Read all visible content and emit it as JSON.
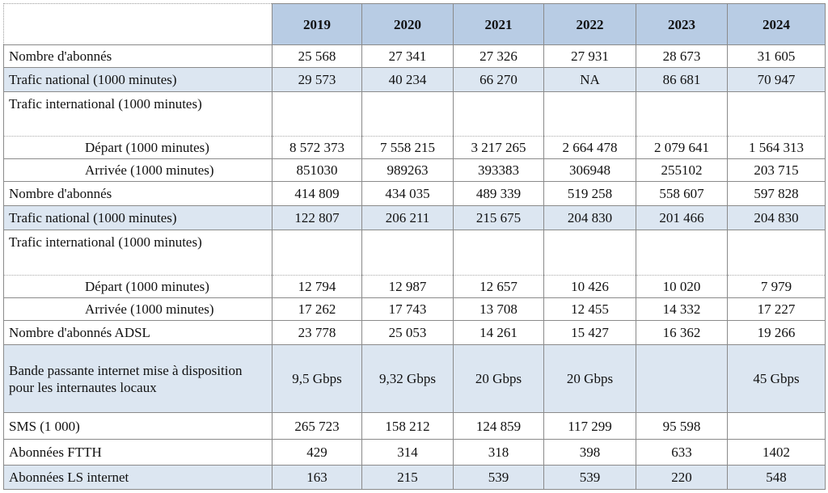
{
  "table": {
    "columns": [
      "2019",
      "2020",
      "2021",
      "2022",
      "2023",
      "2024"
    ],
    "rows": [
      {
        "label": "Nombre d'abonnés",
        "cells": [
          "25 568",
          "27 341",
          "27 326",
          "27 931",
          "28 673",
          "31 605"
        ]
      },
      {
        "label": "Trafic national (1000 minutes)",
        "cells": [
          "29 573",
          "40 234",
          "66 270",
          "NA",
          "86 681",
          "70 947"
        ]
      },
      {
        "label": "Trafic international (1000 minutes)",
        "cells": [
          null,
          null,
          null,
          null,
          null,
          null
        ]
      },
      {
        "label": "Départ  (1000 minutes)",
        "cells": [
          "8 572 373",
          "7 558 215",
          "3 217 265",
          "2 664 478",
          "2 079 641",
          "1 564 313"
        ]
      },
      {
        "label": "Arrivée  (1000 minutes)",
        "cells": [
          "851030",
          "989263",
          "393383",
          "306948",
          "255102",
          "203 715"
        ]
      },
      {
        "label": "Nombre d'abonnés",
        "cells": [
          "414 809",
          "434 035",
          "489 339",
          "519 258",
          "558 607",
          "597 828"
        ]
      },
      {
        "label": "Trafic national (1000 minutes)",
        "cells": [
          "122 807",
          "206 211",
          "215 675",
          "204 830",
          "201 466",
          "204 830"
        ]
      },
      {
        "label": "Trafic international (1000 minutes)",
        "cells": [
          null,
          null,
          null,
          null,
          null,
          null
        ]
      },
      {
        "label": "Départ  (1000 minutes)",
        "cells": [
          "12 794",
          "12 987",
          "12 657",
          "10 426",
          "10 020",
          "7 979"
        ]
      },
      {
        "label": "Arrivée  (1000 minutes)",
        "cells": [
          "17 262",
          "17 743",
          "13 708",
          "12 455",
          "14 332",
          "17 227"
        ]
      },
      {
        "label": "Nombre d'abonnés ADSL",
        "cells": [
          "23 778",
          "25 053",
          "14 261",
          "15 427",
          "16 362",
          "19 266"
        ]
      },
      {
        "label": "Bande passante internet mise à disposition pour les internautes locaux",
        "cells": [
          "9,5 Gbps",
          "9,32 Gbps",
          "20 Gbps",
          "20 Gbps",
          null,
          "45 Gbps"
        ]
      },
      {
        "label": "SMS (1 000)",
        "cells": [
          "265 723",
          "158 212",
          "124 859",
          "117 299",
          "95 598",
          null
        ]
      },
      {
        "label": "Abonnées FTTH",
        "cells": [
          "429",
          "314",
          "318",
          "398",
          "633",
          "1402"
        ]
      },
      {
        "label": "Abonnées LS internet",
        "cells": [
          "163",
          "215",
          "539",
          "539",
          "220",
          "548"
        ]
      }
    ]
  }
}
